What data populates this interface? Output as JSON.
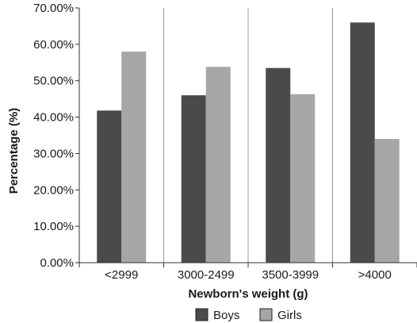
{
  "chart_data": {
    "type": "bar",
    "title": "",
    "xlabel": "Newborn's weight (g)",
    "ylabel": "Percentage (%)",
    "categories": [
      "<2999",
      "3000-2499",
      "3500-3999",
      ">4000"
    ],
    "series": [
      {
        "name": "Boys",
        "values": [
          41.8,
          46.0,
          53.5,
          66.0
        ],
        "color": "#4a4a4a"
      },
      {
        "name": "Girls",
        "values": [
          58.0,
          53.8,
          46.3,
          34.0
        ],
        "color": "#a6a6a6"
      }
    ],
    "ylim": [
      0,
      70
    ],
    "yticks": [
      "0.00%",
      "10.00%",
      "20.00%",
      "30.00%",
      "40.00%",
      "50.00%",
      "60.00%",
      "70.00%"
    ],
    "grid": "vertical category separators",
    "legend": "bottom-center"
  }
}
